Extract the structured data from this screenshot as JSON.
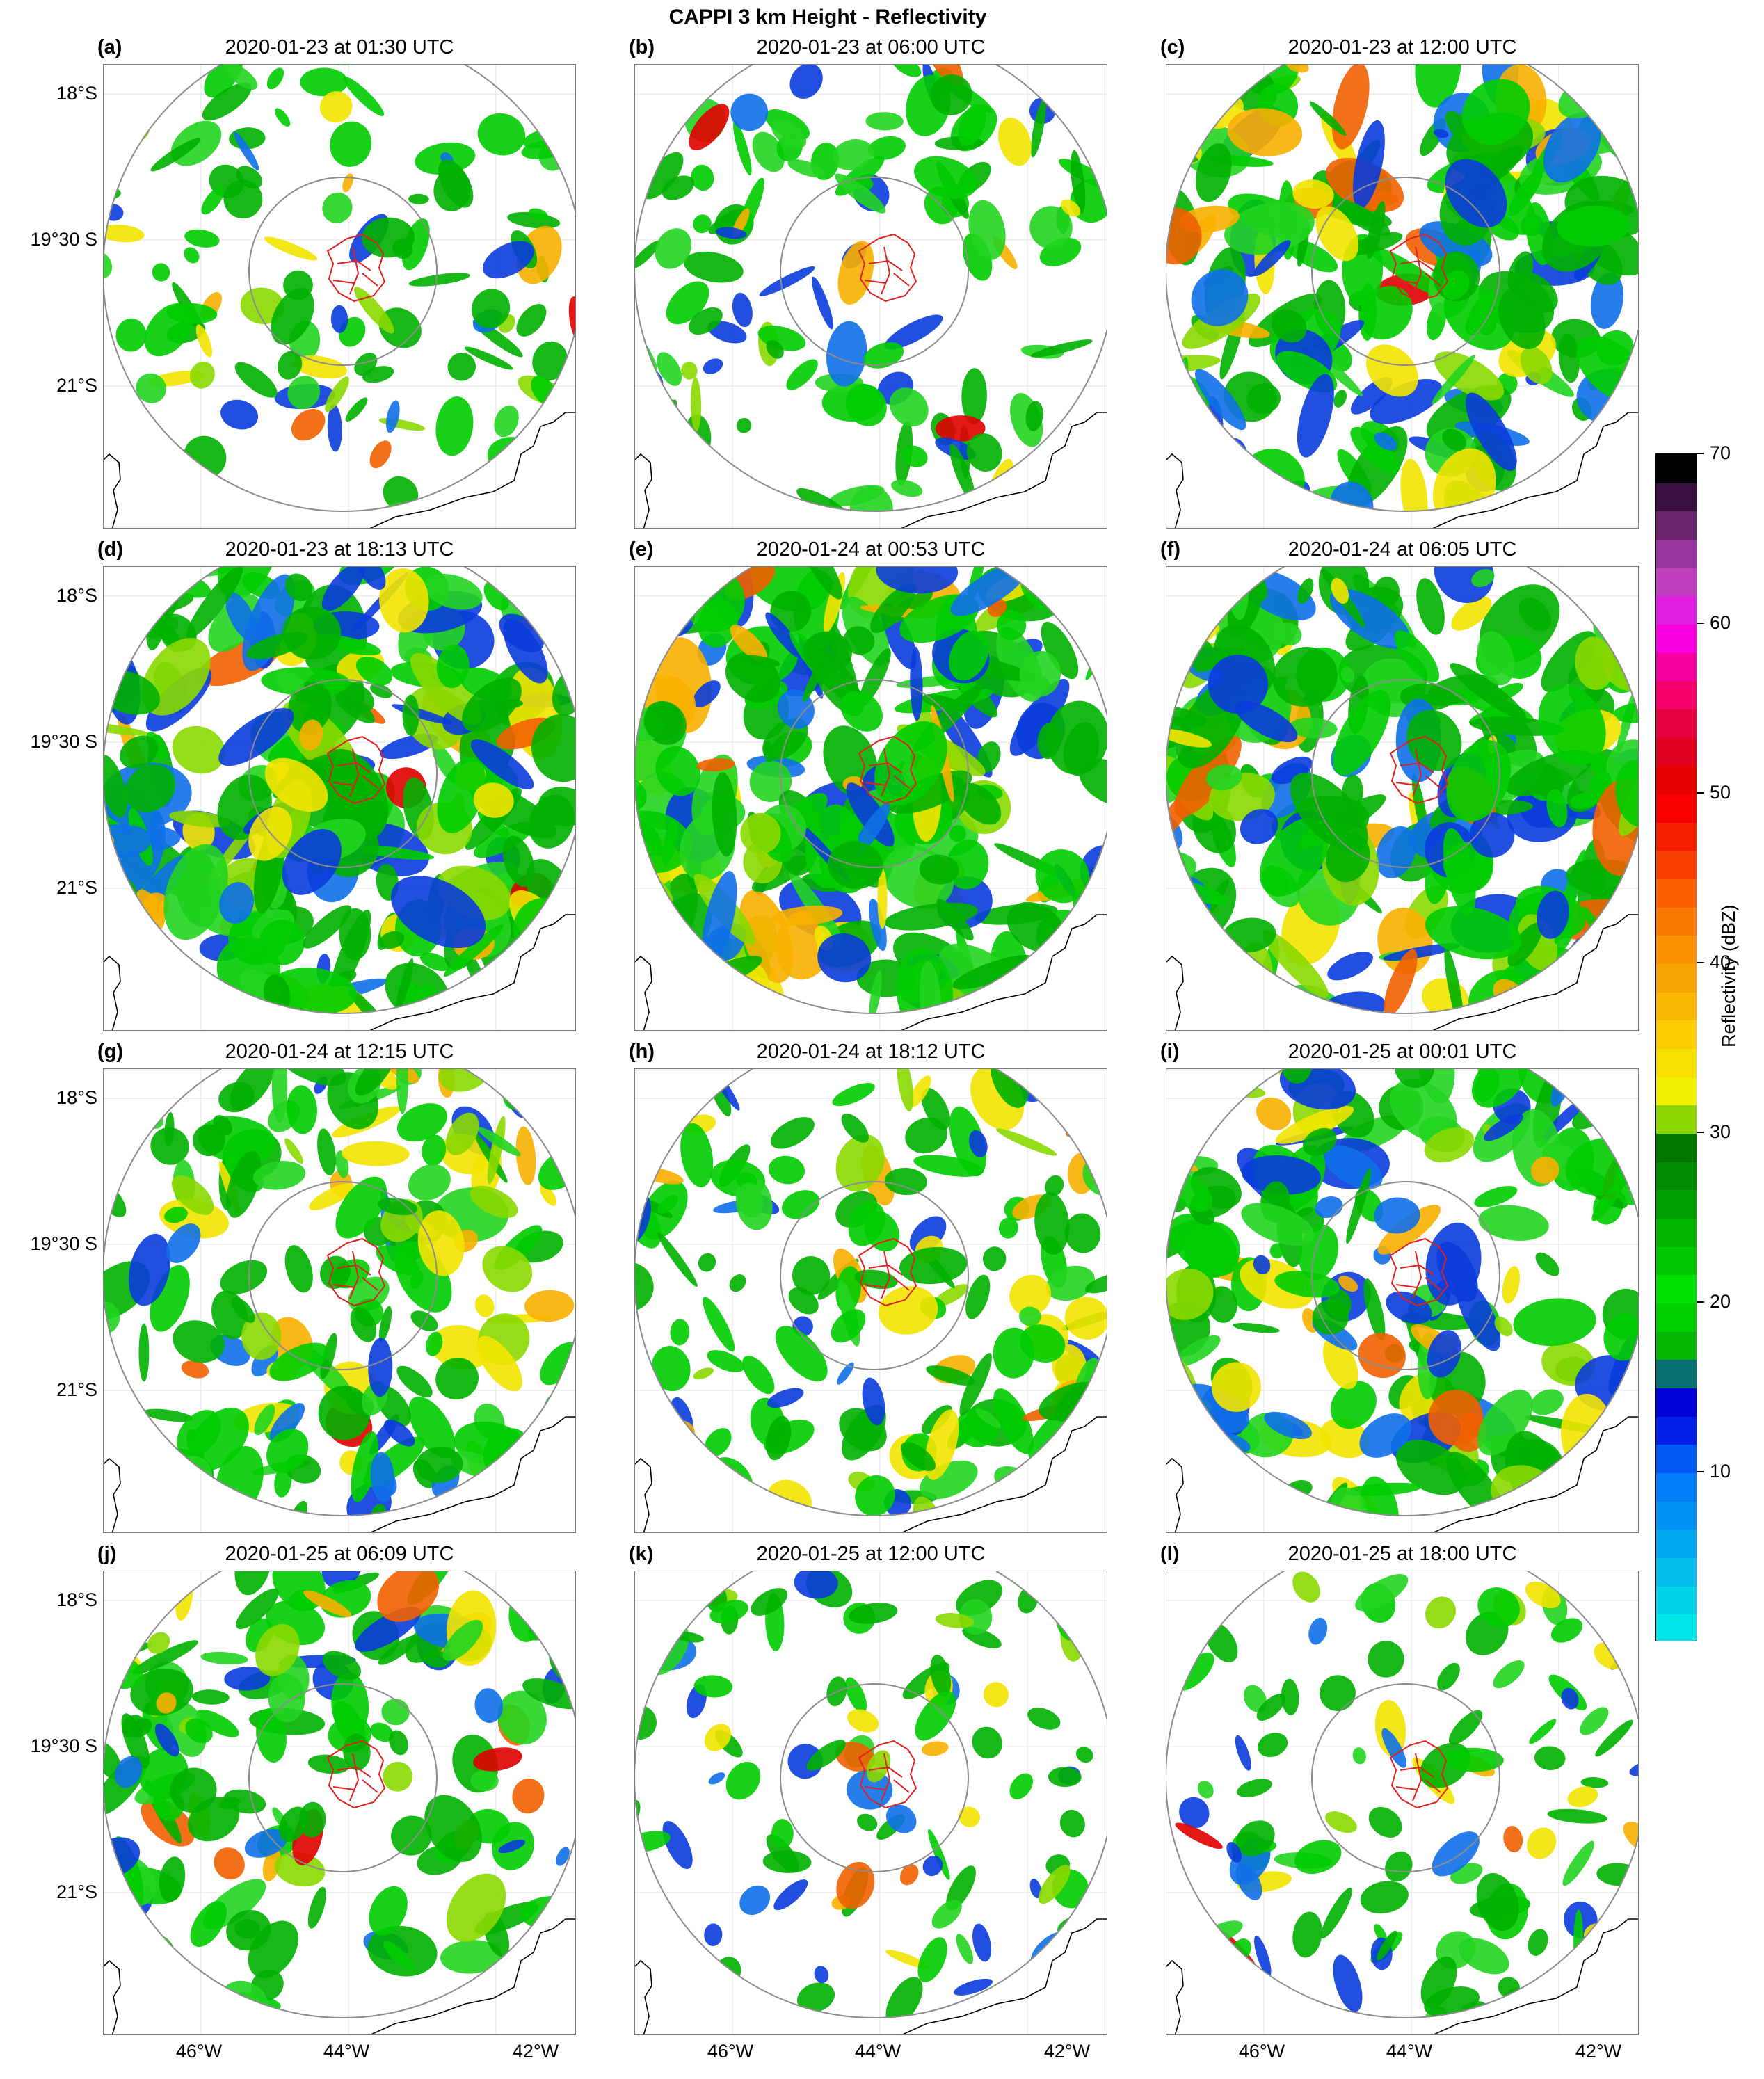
{
  "figure": {
    "title": "CAPPI 3 km Height - Reflectivity"
  },
  "axes": {
    "lat_ticks": [
      "18°S",
      "19°30 S",
      "21°S"
    ],
    "lon_ticks": [
      "46°W",
      "44°W",
      "42°W"
    ]
  },
  "panels": [
    {
      "letter": "(a)",
      "time": "2020-01-23 at 01:30 UTC",
      "coverage": 0.3
    },
    {
      "letter": "(b)",
      "time": "2020-01-23 at 06:00 UTC",
      "coverage": 0.35
    },
    {
      "letter": "(c)",
      "time": "2020-01-23 at 12:00 UTC",
      "coverage": 0.7
    },
    {
      "letter": "(d)",
      "time": "2020-01-23 at 18:13 UTC",
      "coverage": 0.85
    },
    {
      "letter": "(e)",
      "time": "2020-01-24 at 00:53 UTC",
      "coverage": 0.8
    },
    {
      "letter": "(f)",
      "time": "2020-01-24 at 06:05 UTC",
      "coverage": 0.8
    },
    {
      "letter": "(g)",
      "time": "2020-01-24 at 12:15 UTC",
      "coverage": 0.55
    },
    {
      "letter": "(h)",
      "time": "2020-01-24 at 18:12 UTC",
      "coverage": 0.45
    },
    {
      "letter": "(i)",
      "time": "2020-01-25 at 00:01 UTC",
      "coverage": 0.6
    },
    {
      "letter": "(j)",
      "time": "2020-01-25 at 06:09 UTC",
      "coverage": 0.5
    },
    {
      "letter": "(k)",
      "time": "2020-01-25 at 12:00 UTC",
      "coverage": 0.25
    },
    {
      "letter": "(l)",
      "time": "2020-01-25 at 18:00 UTC",
      "coverage": 0.3
    }
  ],
  "colorbar": {
    "label": "Reflectivity (dBZ)",
    "ticks": [
      "10",
      "20",
      "30",
      "40",
      "50",
      "60",
      "70"
    ],
    "min": 0,
    "max": 70,
    "colors": [
      "#00e6e6",
      "#00d2ea",
      "#00bdee",
      "#00a8f2",
      "#0093f5",
      "#007ef8",
      "#0058f5",
      "#0020e8",
      "#0000d8",
      "#087070",
      "#06b806",
      "#00d000",
      "#00e200",
      "#00c800",
      "#00b400",
      "#00a000",
      "#008c00",
      "#007800",
      "#8ed800",
      "#f0f000",
      "#f8e000",
      "#f8cc00",
      "#f8b800",
      "#f8a400",
      "#f89000",
      "#f87800",
      "#f86000",
      "#f84000",
      "#f82000",
      "#f80000",
      "#e80000",
      "#e00020",
      "#e80040",
      "#f8006c",
      "#f800a0",
      "#f800e0",
      "#e020e0",
      "#c040c0",
      "#9a3aa0",
      "#6a2470",
      "#3c1040",
      "#000000"
    ]
  }
}
